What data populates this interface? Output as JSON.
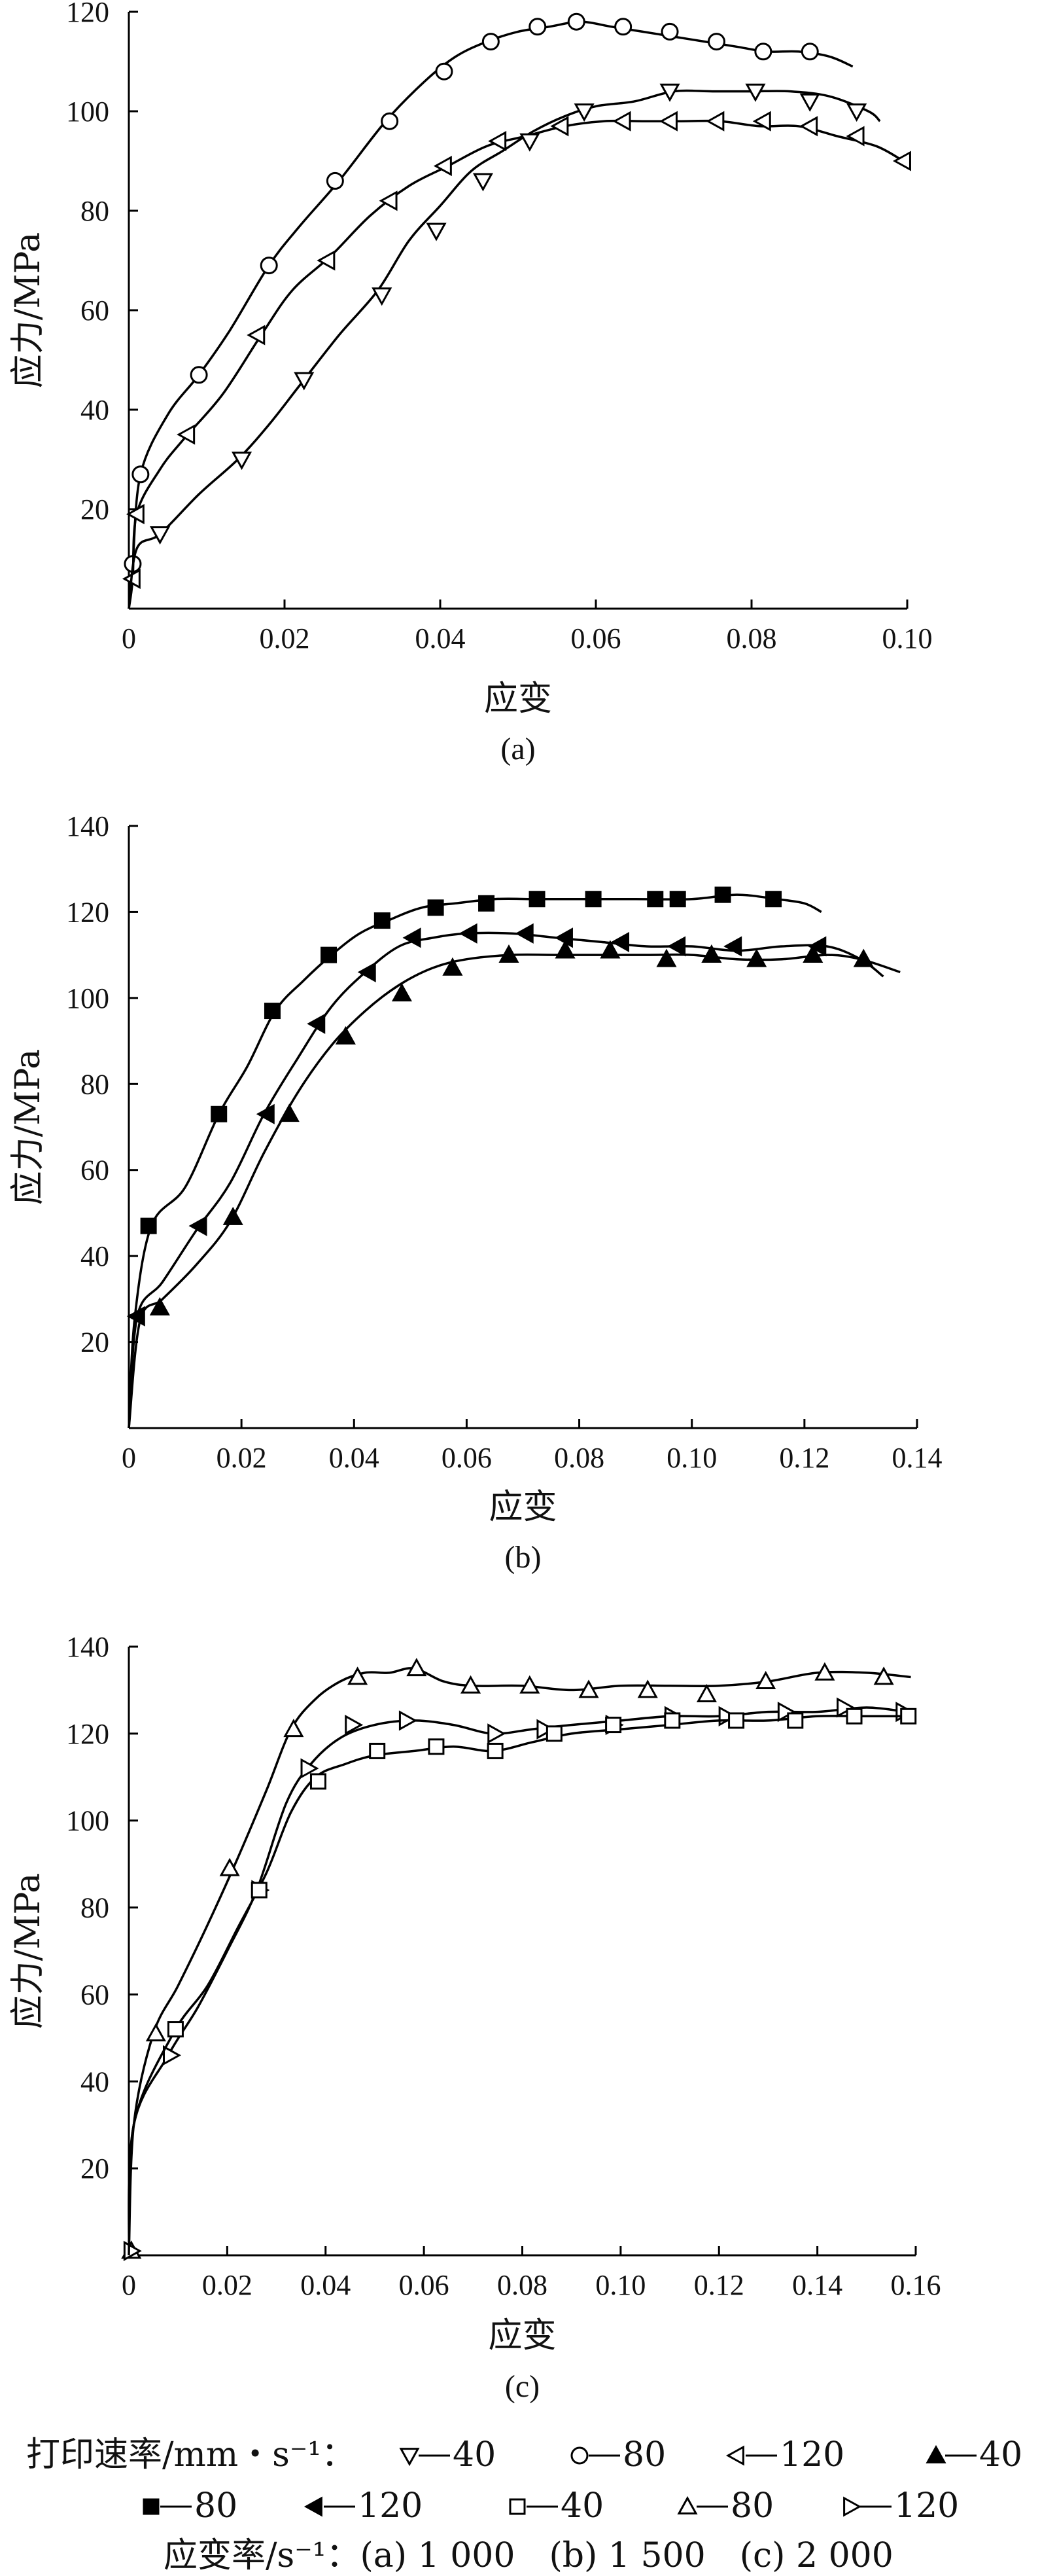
{
  "chart_data": [
    {
      "type": "line",
      "panel_label": "(a)",
      "xlabel": "应变",
      "ylabel": "应力/MPa",
      "xlim": [
        0,
        0.1
      ],
      "ylim": [
        0,
        120
      ],
      "x_ticks": [
        "0",
        "0.02",
        "0.04",
        "0.06",
        "0.08",
        "0.10"
      ],
      "y_ticks": [
        "20",
        "40",
        "60",
        "80",
        "100",
        "120"
      ],
      "series": [
        {
          "name": "80",
          "marker": "circle-open",
          "x": [
            0,
            0.0005,
            0.0015,
            0.005,
            0.009,
            0.013,
            0.018,
            0.022,
            0.027,
            0.033,
            0.038,
            0.042,
            0.046,
            0.05,
            0.054,
            0.058,
            0.062,
            0.066,
            0.07,
            0.074,
            0.078,
            0.082,
            0.086,
            0.09,
            0.093
          ],
          "y": [
            0,
            9,
            27,
            39,
            47,
            56,
            69,
            77,
            86,
            98,
            106,
            111,
            114,
            116,
            117,
            118,
            117,
            116,
            115,
            114,
            113,
            112,
            112,
            111,
            109
          ],
          "markers_x": [
            0.0005,
            0.0015,
            0.009,
            0.018,
            0.0265,
            0.0335,
            0.0405,
            0.0465,
            0.0525,
            0.0575,
            0.0635,
            0.0695,
            0.0755,
            0.0815,
            0.0875
          ],
          "markers_y": [
            9,
            27,
            47,
            69,
            86,
            98,
            108,
            114,
            117,
            118,
            117,
            116,
            114,
            112,
            112
          ]
        },
        {
          "name": "120",
          "marker": "triangle-left-open",
          "x": [
            0,
            0.0005,
            0.001,
            0.004,
            0.007,
            0.012,
            0.017,
            0.021,
            0.026,
            0.031,
            0.036,
            0.041,
            0.046,
            0.051,
            0.056,
            0.061,
            0.066,
            0.071,
            0.076,
            0.081,
            0.086,
            0.091,
            0.096,
            0.0995
          ],
          "y": [
            0,
            6,
            19,
            28,
            34,
            43,
            55,
            64,
            71,
            79,
            85,
            89,
            93,
            95,
            97,
            98,
            98,
            98,
            98,
            97,
            97,
            95,
            93,
            90
          ],
          "markers_x": [
            0.0005,
            0.001,
            0.0075,
            0.0165,
            0.0255,
            0.0335,
            0.0405,
            0.0475,
            0.0555,
            0.0635,
            0.0695,
            0.0755,
            0.0815,
            0.0875,
            0.0935,
            0.0995
          ],
          "markers_y": [
            6,
            19,
            35,
            55,
            70,
            82,
            89,
            94,
            97,
            98,
            98,
            98,
            98,
            97,
            95,
            90
          ]
        },
        {
          "name": "40",
          "marker": "triangle-down-open",
          "x": [
            0,
            0.001,
            0.004,
            0.009,
            0.014,
            0.018,
            0.022,
            0.027,
            0.032,
            0.036,
            0.04,
            0.044,
            0.048,
            0.052,
            0.056,
            0.06,
            0.065,
            0.07,
            0.075,
            0.08,
            0.085,
            0.09,
            0.095,
            0.0965
          ],
          "y": [
            0,
            12,
            15,
            23,
            30,
            37,
            45,
            55,
            64,
            74,
            81,
            88,
            92,
            96,
            99,
            101,
            102,
            104,
            104,
            104,
            104,
            103,
            100,
            98
          ],
          "markers_x": [
            0.004,
            0.0145,
            0.0225,
            0.0325,
            0.0395,
            0.0455,
            0.0515,
            0.0585,
            0.0695,
            0.0805,
            0.0875,
            0.0935
          ],
          "markers_y": [
            15,
            30,
            46,
            63,
            76,
            86,
            94,
            100,
            104,
            104,
            102,
            100
          ]
        }
      ]
    },
    {
      "type": "line",
      "panel_label": "(b)",
      "xlabel": "应变",
      "ylabel": "应力/MPa",
      "xlim": [
        0,
        0.14
      ],
      "ylim": [
        0,
        140
      ],
      "x_ticks": [
        "0",
        "0.02",
        "0.04",
        "0.06",
        "0.08",
        "0.10",
        "0.12",
        "0.14"
      ],
      "y_ticks": [
        "20",
        "40",
        "60",
        "80",
        "100",
        "120",
        "140"
      ],
      "series": [
        {
          "name": "80",
          "marker": "square-filled",
          "x": [
            0,
            0.001,
            0.004,
            0.01,
            0.016,
            0.021,
            0.026,
            0.031,
            0.036,
            0.041,
            0.046,
            0.052,
            0.058,
            0.065,
            0.072,
            0.08,
            0.09,
            0.1,
            0.108,
            0.115,
            0.12,
            0.123
          ],
          "y": [
            0,
            25,
            47,
            56,
            73,
            84,
            97,
            104,
            110,
            115,
            118,
            121,
            122,
            123,
            123,
            123,
            123,
            123,
            124,
            123,
            122,
            120
          ],
          "markers_x": [
            0.0035,
            0.016,
            0.0255,
            0.0355,
            0.045,
            0.0545,
            0.0635,
            0.0725,
            0.0825,
            0.0935,
            0.0975,
            0.1055,
            0.1145
          ],
          "markers_y": [
            47,
            73,
            97,
            110,
            118,
            121,
            122,
            123,
            123,
            123,
            123,
            124,
            123
          ]
        },
        {
          "name": "120",
          "marker": "triangle-left-filled",
          "x": [
            0,
            0.0015,
            0.006,
            0.012,
            0.018,
            0.024,
            0.03,
            0.036,
            0.042,
            0.048,
            0.054,
            0.06,
            0.068,
            0.076,
            0.084,
            0.092,
            0.1,
            0.108,
            0.116,
            0.124,
            0.13,
            0.134
          ],
          "y": [
            0,
            26,
            34,
            46,
            57,
            73,
            86,
            98,
            106,
            112,
            114,
            115,
            115,
            114,
            113,
            112,
            112,
            111,
            112,
            112,
            109,
            105
          ],
          "markers_x": [
            0.0015,
            0.0125,
            0.0245,
            0.0335,
            0.0425,
            0.0505,
            0.0605,
            0.0705,
            0.0775,
            0.0875,
            0.0975,
            0.1075,
            0.1225
          ],
          "markers_y": [
            26,
            47,
            73,
            94,
            106,
            114,
            115,
            115,
            114,
            113,
            112,
            112,
            112
          ]
        },
        {
          "name": "40",
          "marker": "triangle-up-filled",
          "x": [
            0,
            0.002,
            0.006,
            0.012,
            0.018,
            0.024,
            0.03,
            0.036,
            0.042,
            0.048,
            0.054,
            0.06,
            0.068,
            0.076,
            0.084,
            0.092,
            0.1,
            0.108,
            0.116,
            0.124,
            0.13,
            0.137
          ],
          "y": [
            0,
            25,
            30,
            38,
            48,
            64,
            78,
            89,
            97,
            103,
            107,
            109,
            110,
            110,
            110,
            110,
            110,
            109,
            109,
            110,
            109,
            106
          ],
          "markers_x": [
            0.0055,
            0.0185,
            0.0285,
            0.0385,
            0.0485,
            0.0575,
            0.0675,
            0.0775,
            0.0855,
            0.0955,
            0.1035,
            0.1115,
            0.1215,
            0.1305
          ],
          "markers_y": [
            28,
            49,
            73,
            91,
            101,
            107,
            110,
            111,
            111,
            109,
            110,
            109,
            110,
            109
          ]
        }
      ]
    },
    {
      "type": "line",
      "panel_label": "(c)",
      "xlabel": "应变",
      "ylabel": "应力/MPa",
      "xlim": [
        0,
        0.16
      ],
      "ylim": [
        0,
        140
      ],
      "x_ticks": [
        "0",
        "0.02",
        "0.04",
        "0.06",
        "0.08",
        "0.10",
        "0.12",
        "0.14",
        "0.16"
      ],
      "y_ticks": [
        "20",
        "40",
        "60",
        "80",
        "100",
        "120",
        "140"
      ],
      "series": [
        {
          "name": "80",
          "marker": "triangle-up-open",
          "x": [
            0,
            0.001,
            0.005,
            0.01,
            0.016,
            0.022,
            0.028,
            0.033,
            0.038,
            0.043,
            0.048,
            0.053,
            0.058,
            0.064,
            0.07,
            0.08,
            0.09,
            0.1,
            0.11,
            0.12,
            0.13,
            0.14,
            0.15,
            0.159
          ],
          "y": [
            0,
            30,
            51,
            62,
            76,
            91,
            107,
            121,
            128,
            132,
            134,
            134,
            135,
            132,
            131,
            131,
            130,
            131,
            131,
            131,
            132,
            134,
            134,
            133
          ],
          "markers_x": [
            0.0005,
            0.0055,
            0.0205,
            0.0335,
            0.0465,
            0.0585,
            0.0695,
            0.0815,
            0.0935,
            0.1055,
            0.1175,
            0.1295,
            0.1415,
            0.1535
          ],
          "markers_y": [
            1,
            51,
            89,
            121,
            133,
            135,
            131,
            131,
            130,
            130,
            129,
            132,
            134,
            133
          ]
        },
        {
          "name": "120",
          "marker": "triangle-right-open",
          "x": [
            0,
            0.001,
            0.008,
            0.014,
            0.02,
            0.026,
            0.032,
            0.037,
            0.043,
            0.05,
            0.058,
            0.066,
            0.074,
            0.082,
            0.09,
            0.1,
            0.11,
            0.12,
            0.13,
            0.14,
            0.15,
            0.158
          ],
          "y": [
            0,
            30,
            46,
            57,
            70,
            84,
            104,
            113,
            119,
            122,
            123,
            122,
            120,
            121,
            122,
            123,
            124,
            124,
            125,
            125,
            126,
            125
          ],
          "markers_x": [
            0.0005,
            0.0085,
            0.0265,
            0.0365,
            0.0455,
            0.0565,
            0.0745,
            0.0845,
            0.0985,
            0.1105,
            0.1215,
            0.1335,
            0.1455,
            0.1575
          ],
          "markers_y": [
            1,
            46,
            84,
            112,
            122,
            123,
            120,
            121,
            122,
            124,
            124,
            125,
            126,
            125
          ]
        },
        {
          "name": "40",
          "marker": "square-open",
          "x": [
            0,
            0.001,
            0.009,
            0.016,
            0.022,
            0.028,
            0.033,
            0.038,
            0.044,
            0.05,
            0.058,
            0.066,
            0.074,
            0.082,
            0.09,
            0.1,
            0.11,
            0.12,
            0.13,
            0.14,
            0.15,
            0.159
          ],
          "y": [
            0,
            30,
            51,
            62,
            75,
            88,
            102,
            110,
            113,
            115,
            116,
            117,
            116,
            118,
            120,
            121,
            122,
            123,
            123,
            124,
            124,
            124
          ],
          "markers_x": [
            0.0095,
            0.0265,
            0.0385,
            0.0505,
            0.0625,
            0.0745,
            0.0865,
            0.0985,
            0.1105,
            0.1235,
            0.1355,
            0.1475,
            0.1585
          ],
          "markers_y": [
            52,
            84,
            109,
            116,
            117,
            116,
            120,
            122,
            123,
            123,
            123,
            124,
            124
          ]
        }
      ]
    }
  ],
  "legend": {
    "title": "打印速率/mm・s⁻¹：",
    "entries": [
      {
        "label": "40",
        "marker": "triangle-down-open"
      },
      {
        "label": "80",
        "marker": "circle-open"
      },
      {
        "label": "120",
        "marker": "triangle-left-open"
      },
      {
        "label": "40",
        "marker": "triangle-up-filled"
      },
      {
        "label": "80",
        "marker": "square-filled"
      },
      {
        "label": "120",
        "marker": "triangle-left-filled"
      },
      {
        "label": "40",
        "marker": "square-open"
      },
      {
        "label": "80",
        "marker": "triangle-up-open"
      },
      {
        "label": "120",
        "marker": "triangle-right-open"
      }
    ],
    "strain_rate_note": "应变率/s⁻¹：(a) 1 000　(b) 1 500　(c) 2 000"
  }
}
